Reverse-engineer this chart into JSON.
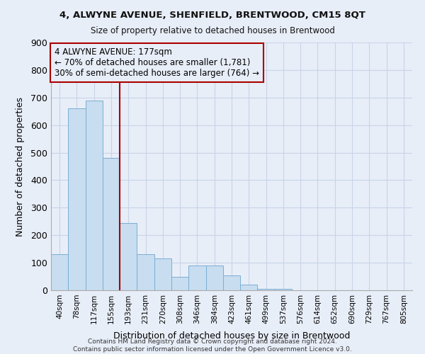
{
  "title": "4, ALWYNE AVENUE, SHENFIELD, BRENTWOOD, CM15 8QT",
  "subtitle": "Size of property relative to detached houses in Brentwood",
  "xlabel": "Distribution of detached houses by size in Brentwood",
  "ylabel": "Number of detached properties",
  "footer_line1": "Contains HM Land Registry data © Crown copyright and database right 2024.",
  "footer_line2": "Contains public sector information licensed under the Open Government Licence v3.0.",
  "annotation_line1": "4 ALWYNE AVENUE: 177sqm",
  "annotation_line2": "← 70% of detached houses are smaller (1,781)",
  "annotation_line3": "30% of semi-detached houses are larger (764) →",
  "bar_color": "#c8ddef",
  "bar_edge_color": "#7aafd4",
  "vline_color": "#aa0000",
  "categories": [
    "40sqm",
    "78sqm",
    "117sqm",
    "155sqm",
    "193sqm",
    "231sqm",
    "270sqm",
    "308sqm",
    "346sqm",
    "384sqm",
    "423sqm",
    "461sqm",
    "499sqm",
    "537sqm",
    "576sqm",
    "614sqm",
    "652sqm",
    "690sqm",
    "729sqm",
    "767sqm",
    "805sqm"
  ],
  "values": [
    130,
    660,
    690,
    480,
    245,
    130,
    115,
    50,
    90,
    90,
    55,
    20,
    5,
    5,
    0,
    0,
    0,
    0,
    0,
    0,
    0
  ],
  "ylim": [
    0,
    900
  ],
  "yticks": [
    0,
    100,
    200,
    300,
    400,
    500,
    600,
    700,
    800,
    900
  ],
  "vline_x": 3.5,
  "grid_color": "#c8d4e8",
  "bg_color": "#e8eef8",
  "annotation_font_size": 8.5
}
